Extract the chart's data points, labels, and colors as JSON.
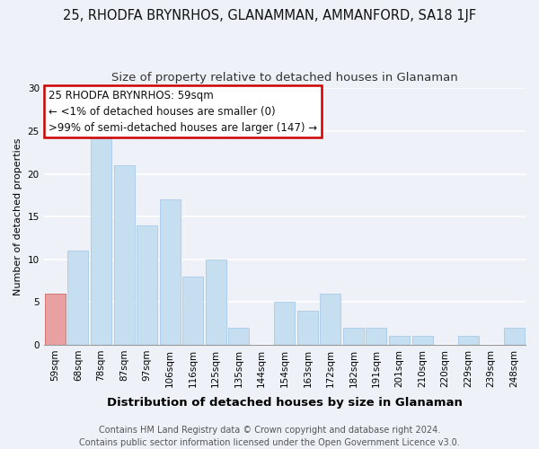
{
  "title": "25, RHODFA BRYNRHOS, GLANAMMAN, AMMANFORD, SA18 1JF",
  "subtitle": "Size of property relative to detached houses in Glanaman",
  "xlabel": "Distribution of detached houses by size in Glanaman",
  "ylabel": "Number of detached properties",
  "bar_color": "#c5dff0",
  "bar_edge_color": "#a8c8e8",
  "highlight_bar_color": "#e8a0a0",
  "highlight_bar_edge_color": "#cc6666",
  "categories": [
    "59sqm",
    "68sqm",
    "78sqm",
    "87sqm",
    "97sqm",
    "106sqm",
    "116sqm",
    "125sqm",
    "135sqm",
    "144sqm",
    "154sqm",
    "163sqm",
    "172sqm",
    "182sqm",
    "191sqm",
    "201sqm",
    "210sqm",
    "220sqm",
    "229sqm",
    "239sqm",
    "248sqm"
  ],
  "values": [
    6,
    11,
    25,
    21,
    14,
    17,
    8,
    10,
    2,
    0,
    5,
    4,
    6,
    2,
    2,
    1,
    1,
    0,
    1,
    0,
    2
  ],
  "ylim": [
    0,
    30
  ],
  "yticks": [
    0,
    5,
    10,
    15,
    20,
    25,
    30
  ],
  "annotation_box_text_line1": "25 RHODFA BRYNRHOS: 59sqm",
  "annotation_box_text_line2": "← <1% of detached houses are smaller (0)",
  "annotation_box_text_line3": ">99% of semi-detached houses are larger (147) →",
  "annotation_box_color": "#ffffff",
  "annotation_box_edge_color": "#cc0000",
  "footer_line1": "Contains HM Land Registry data © Crown copyright and database right 2024.",
  "footer_line2": "Contains public sector information licensed under the Open Government Licence v3.0.",
  "highlight_bar_index": 0,
  "background_color": "#eef2f8",
  "grid_color": "#ffffff",
  "title_fontsize": 10.5,
  "subtitle_fontsize": 9.5,
  "xlabel_fontsize": 9.5,
  "ylabel_fontsize": 8,
  "tick_fontsize": 7.5,
  "footer_fontsize": 7,
  "ann_fontsize": 8.5
}
